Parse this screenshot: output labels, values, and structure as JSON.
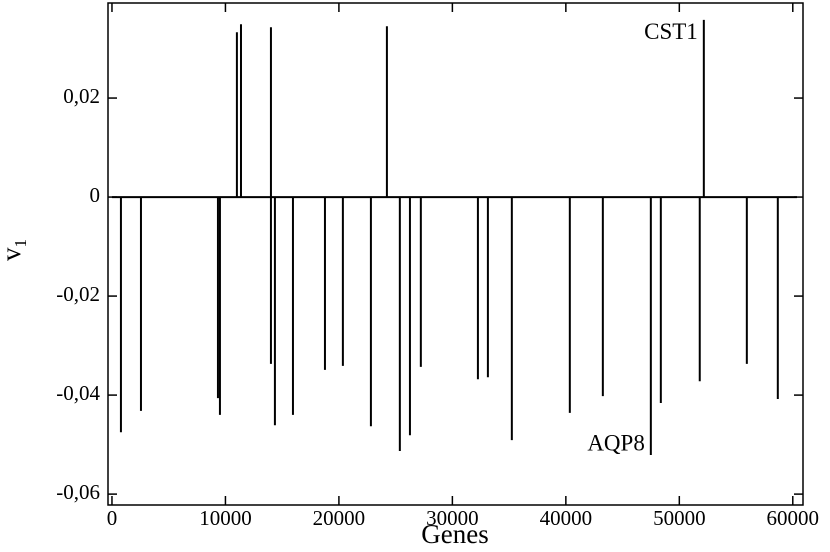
{
  "chart_data": {
    "type": "spike",
    "x_label": "Genes",
    "y_label": "v",
    "y_label_subscript": "1",
    "color": "#000000",
    "xlim": [
      -350,
      60900
    ],
    "ylim": [
      -0.0622,
      0.0392
    ],
    "xticks": [
      0,
      10000,
      20000,
      30000,
      40000,
      50000,
      60000
    ],
    "yticks": [
      {
        "value": -0.06,
        "label": "-0,06"
      },
      {
        "value": -0.04,
        "label": "-0,04"
      },
      {
        "value": -0.02,
        "label": "-0,02"
      },
      0,
      {
        "value": 0.02,
        "label": "0,02"
      }
    ],
    "x": [
      790,
      2555,
      9340,
      9515,
      11010,
      11370,
      14010,
      14010,
      14360,
      15950,
      18770,
      20350,
      22820,
      24230,
      25370,
      26260,
      27220,
      32250,
      33130,
      35240,
      40350,
      43260,
      47490,
      48370,
      51800,
      52160,
      55950,
      58680
    ],
    "values": [
      -0.0475,
      -0.0432,
      -0.0406,
      -0.044,
      0.0333,
      0.0349,
      0.0343,
      -0.0337,
      -0.0461,
      -0.044,
      -0.0349,
      -0.0341,
      -0.0463,
      0.0345,
      -0.0513,
      -0.0481,
      -0.0343,
      -0.0368,
      -0.0364,
      -0.0491,
      -0.0436,
      -0.0402,
      -0.0521,
      -0.0416,
      -0.0372,
      0.0358,
      -0.0337,
      -0.0408
    ],
    "annotations": [
      {
        "text": "CST1",
        "point": 25
      },
      {
        "text": "AQP8",
        "point": 22
      }
    ]
  }
}
